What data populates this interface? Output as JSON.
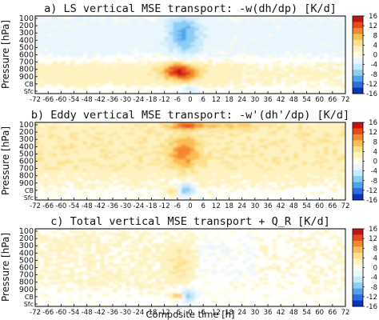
{
  "chart_data": [
    {
      "type": "heatmap",
      "title": "a) LS vertical MSE transport: -w(dh/dp) [K/d]",
      "ylabel": "Pressure [hPa]",
      "xlabel": "",
      "y_ticks": [
        "100",
        "200",
        "300",
        "400",
        "500",
        "600",
        "700",
        "800",
        "900",
        "CB",
        "Sfc"
      ],
      "x_ticks": [
        "-72",
        "-66",
        "-60",
        "-54",
        "-48",
        "-42",
        "-36",
        "-30",
        "-24",
        "-18",
        "-12",
        "-6",
        "0",
        "6",
        "12",
        "18",
        "24",
        "30",
        "36",
        "42",
        "48",
        "54",
        "60",
        "66",
        "72"
      ],
      "xlim": [
        -72,
        72
      ],
      "colorbar": {
        "ticks": [
          "16",
          "12",
          "8",
          "4",
          "0",
          "-4",
          "-8",
          "-12",
          "-16"
        ],
        "range": [
          -16,
          16
        ]
      },
      "features": [
        {
          "type": "cool_core",
          "center_time": -3,
          "levels": "100-500",
          "value": -8
        },
        {
          "type": "warm_core",
          "center_time": -3,
          "levels": "650-850",
          "value": 10
        },
        {
          "type": "cool_band",
          "levels": "100-550",
          "value": -2
        },
        {
          "type": "warm_band",
          "levels": "650-900",
          "value": 3
        }
      ]
    },
    {
      "type": "heatmap",
      "title": "b) Eddy vertical MSE transport: -w'(dh'/dp) [K/d]",
      "ylabel": "Pressure [hPa]",
      "xlabel": "",
      "y_ticks": [
        "100",
        "200",
        "300",
        "400",
        "500",
        "600",
        "700",
        "800",
        "900",
        "CB",
        "Sfc"
      ],
      "x_ticks": [
        "-72",
        "-66",
        "-60",
        "-54",
        "-48",
        "-42",
        "-36",
        "-30",
        "-24",
        "-18",
        "-12",
        "-6",
        "0",
        "6",
        "12",
        "18",
        "24",
        "30",
        "36",
        "42",
        "48",
        "54",
        "60",
        "66",
        "72"
      ],
      "xlim": [
        -72,
        72
      ],
      "colorbar": {
        "ticks": [
          "16",
          "12",
          "8",
          "4",
          "0",
          "-4",
          "-8",
          "-12",
          "-16"
        ],
        "range": [
          -16,
          16
        ]
      },
      "features": [
        {
          "type": "warm_core",
          "center_time": -3,
          "levels": "100-150",
          "value": 14
        },
        {
          "type": "warm_core",
          "center_time": -3,
          "levels": "300-650",
          "value": 9
        },
        {
          "type": "cool_core",
          "center_time": -2,
          "levels": "800-950",
          "value": -8
        },
        {
          "type": "warm_band",
          "levels": "100-700",
          "value": 3
        }
      ]
    },
    {
      "type": "heatmap",
      "title": "c) Total vertical MSE transport + Q_R [K/d]",
      "ylabel": "Pressure [hPa]",
      "xlabel": "Composite time [h]",
      "y_ticks": [
        "100",
        "200",
        "300",
        "400",
        "500",
        "600",
        "700",
        "800",
        "900",
        "CB",
        "Sfc"
      ],
      "x_ticks": [
        "-72",
        "-66",
        "-60",
        "-54",
        "-48",
        "-42",
        "-36",
        "-30",
        "-24",
        "-18",
        "-12",
        "-6",
        "0",
        "6",
        "12",
        "18",
        "24",
        "30",
        "36",
        "42",
        "48",
        "54",
        "60",
        "66",
        "72"
      ],
      "xlim": [
        -72,
        72
      ],
      "colorbar": {
        "ticks": [
          "16",
          "12",
          "8",
          "4",
          "0",
          "-4",
          "-8",
          "-12",
          "-16"
        ],
        "range": [
          -16,
          16
        ]
      },
      "features": [
        {
          "type": "warm_core",
          "center_time": -6,
          "levels": "850-900",
          "value": 9
        },
        {
          "type": "cool_core",
          "center_time": -1,
          "levels": "850-950",
          "value": -8
        },
        {
          "type": "warm_band",
          "levels": "100-800",
          "value": 1.5
        }
      ]
    }
  ]
}
